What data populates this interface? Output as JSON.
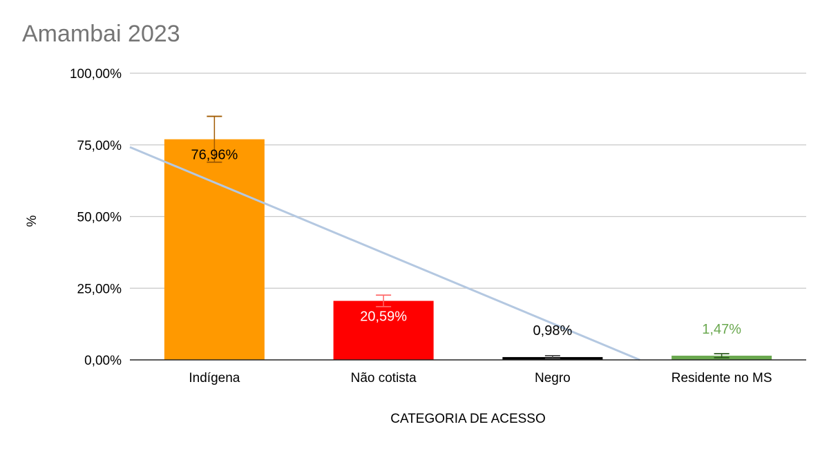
{
  "chart_data": {
    "type": "bar",
    "title": "Amambai 2023",
    "xlabel": "CATEGORIA DE ACESSO",
    "ylabel": "%",
    "ylim": [
      0,
      100
    ],
    "yticks": [
      "0,00%",
      "25,00%",
      "50,00%",
      "75,00%",
      "100,00%"
    ],
    "ytick_values": [
      0,
      25,
      50,
      75,
      100
    ],
    "grid": true,
    "categories": [
      "Indígena",
      "Não cotista",
      "Negro",
      "Residente no MS"
    ],
    "values": [
      76.96,
      20.59,
      0.98,
      1.47
    ],
    "data_labels": [
      "76,96%",
      "20,59%",
      "0,98%",
      "1,47%"
    ],
    "error_plus": [
      8.0,
      2.0,
      0.5,
      0.7
    ],
    "error_minus": [
      8.0,
      2.0,
      0.5,
      0.7
    ],
    "colors": [
      "#ff9900",
      "#ff0000",
      "#000000",
      "#6aa84f"
    ],
    "error_colors": [
      "#a05a00",
      "#ff6666",
      "#444444",
      "#2d5a1e"
    ],
    "label_colors": [
      "#000000",
      "#ffffff",
      "#000000",
      "#6aa84f"
    ],
    "label_position": [
      "inside",
      "inside",
      "above",
      "above"
    ],
    "trendline": {
      "type": "linear",
      "color": "#b4c8e1"
    }
  }
}
